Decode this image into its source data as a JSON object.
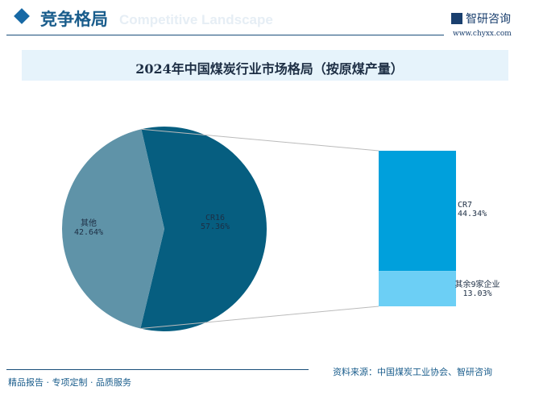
{
  "header": {
    "title": "竞争格局",
    "subtitle": "Competitive Landscape",
    "logo_text": "智研咨询",
    "url": "www.chyxx.com",
    "logo_icon": "zhiyan-logo-icon"
  },
  "chart_data": {
    "title": "2024年中国煤炭行业市场格局（按原煤产量）",
    "type": "pie-of-bar",
    "pie": {
      "labels": [
        "CR16",
        "其他"
      ],
      "values": [
        57.36,
        42.64
      ],
      "value_labels": [
        "57.36%",
        "42.64%"
      ],
      "colors": [
        "#065e80",
        "#5f93a8"
      ]
    },
    "bar": {
      "labels": [
        "CR7",
        "其余9家企业"
      ],
      "values": [
        44.34,
        13.03
      ],
      "value_labels": [
        "44.34%",
        "13.03%"
      ],
      "colors": [
        "#00a0dc",
        "#6ccff5"
      ]
    }
  },
  "footer": {
    "tagline": "精品报告 · 专项定制 · 品质服务",
    "source": "资料来源：中国煤炭工业协会、智研咨询"
  }
}
